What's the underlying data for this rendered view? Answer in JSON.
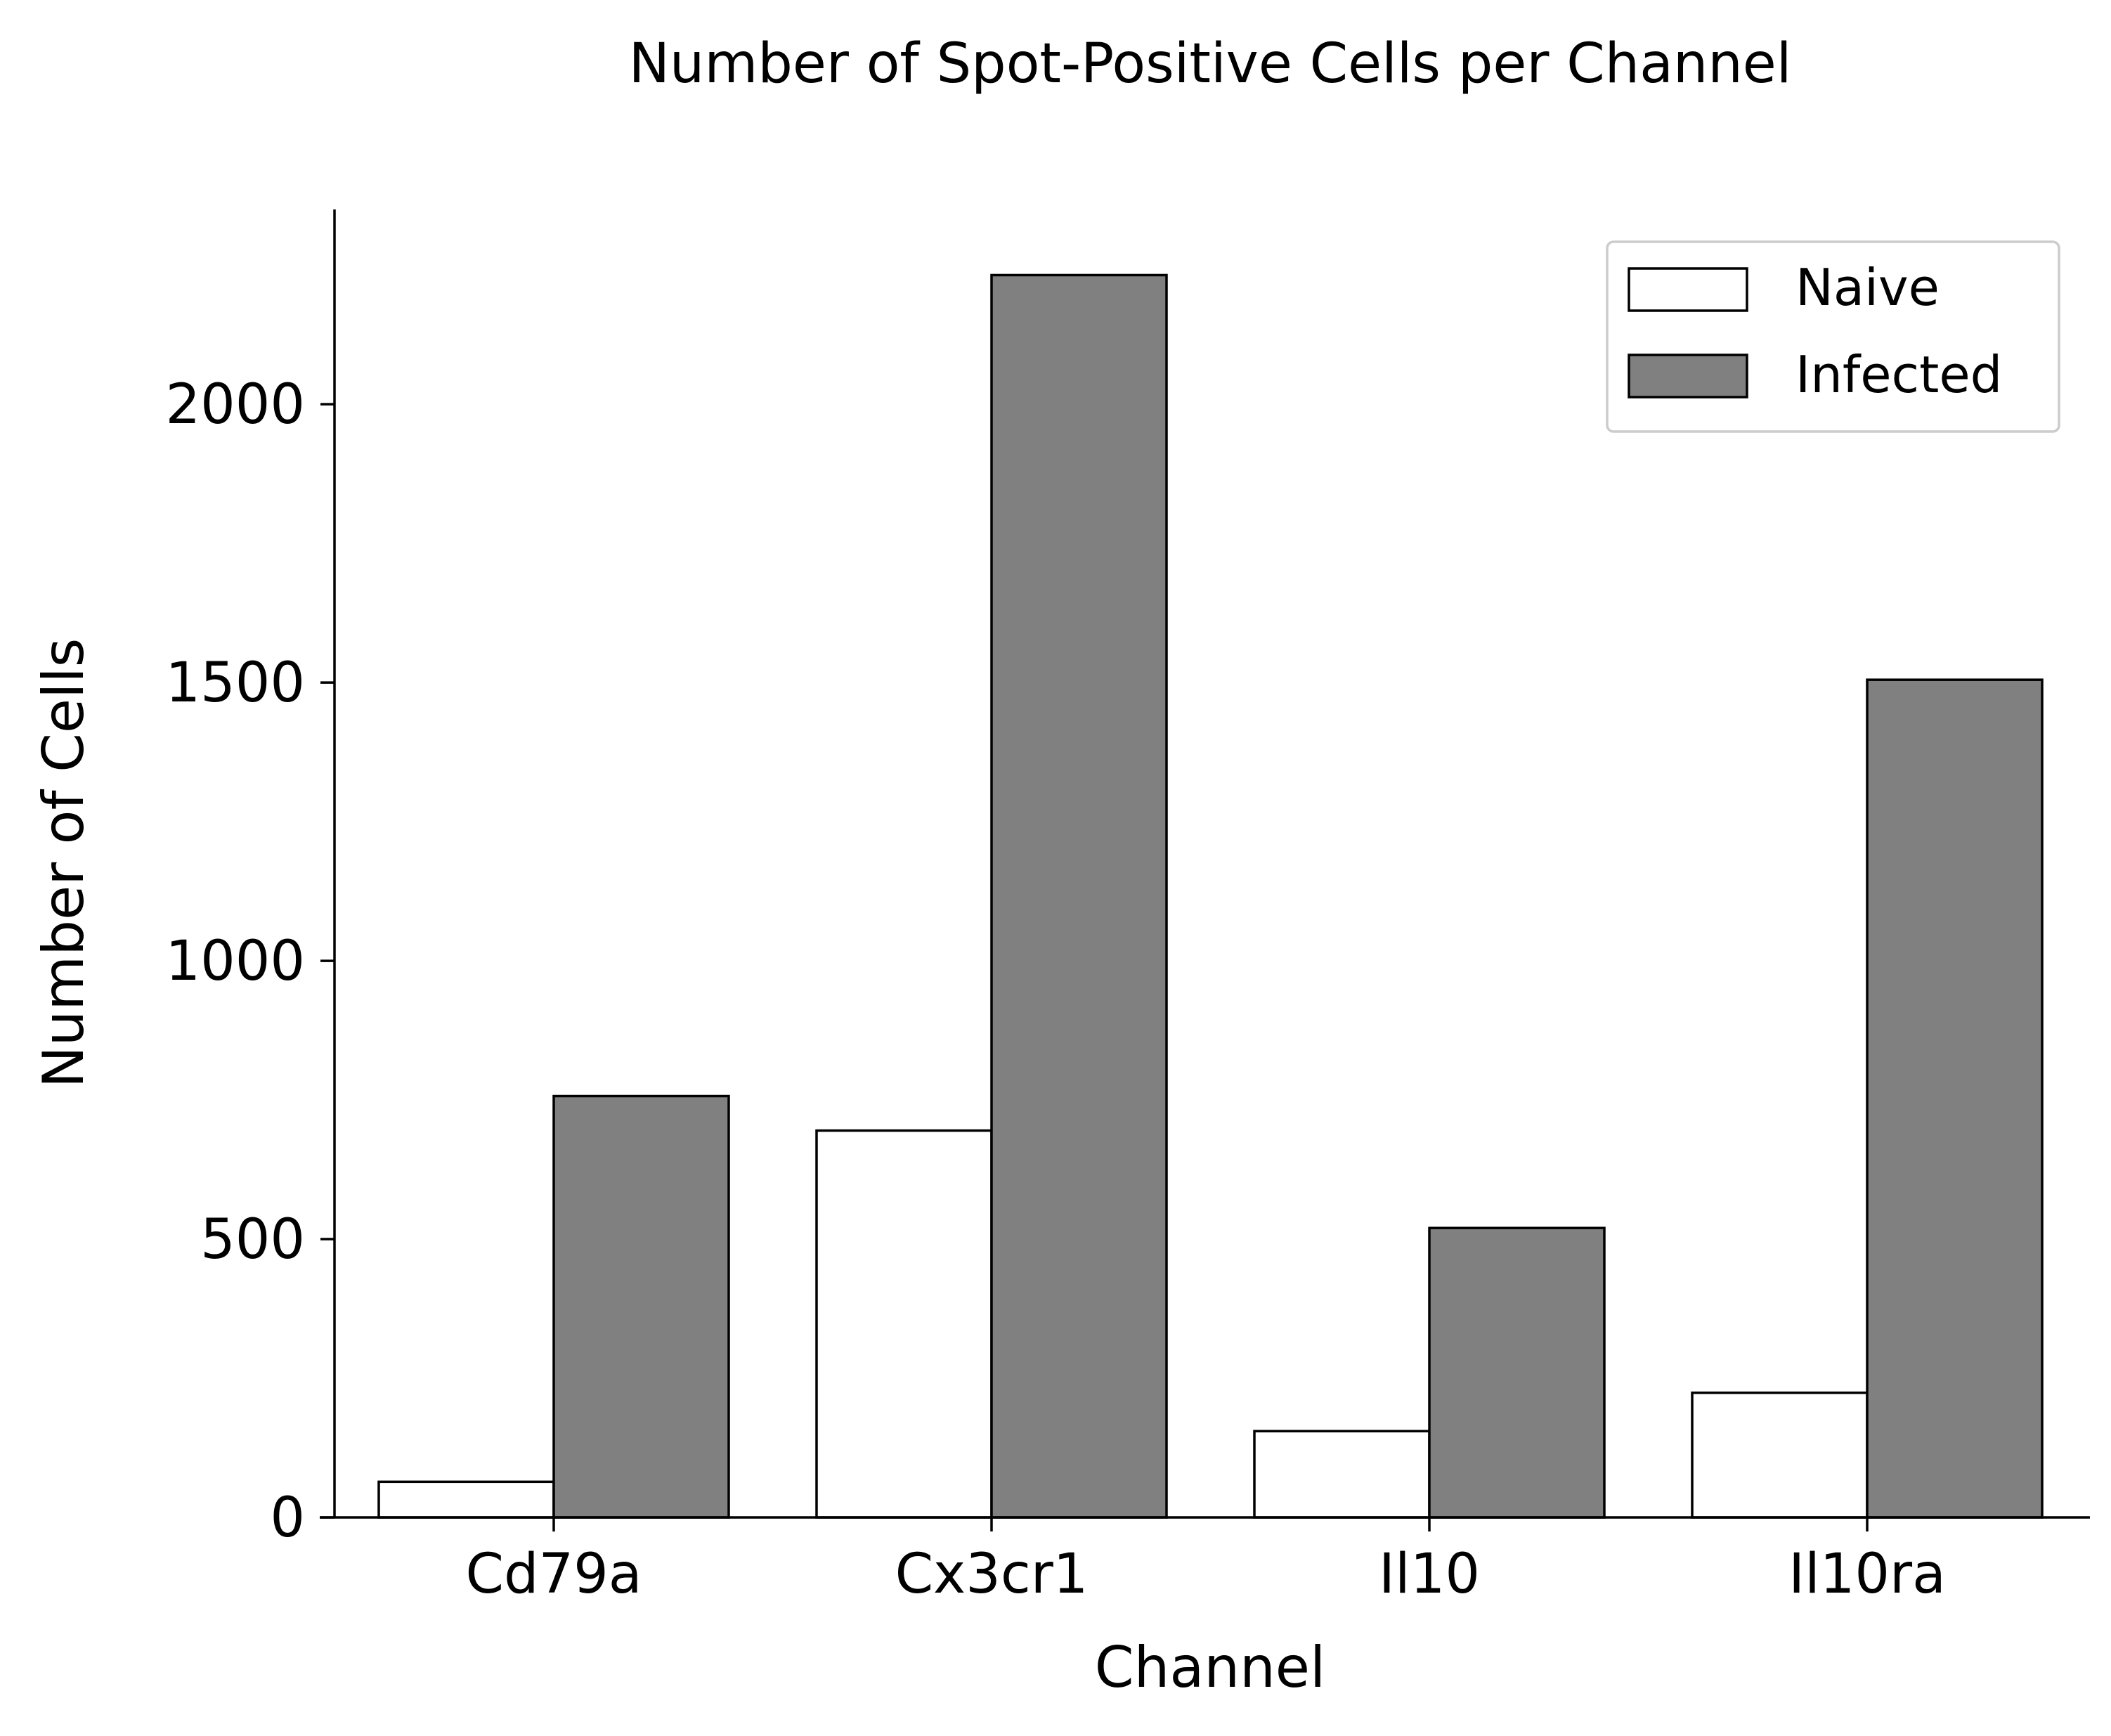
{
  "chart_data": {
    "type": "bar",
    "title": "Number of Spot-Positive Cells per Channel",
    "xlabel": "Channel",
    "ylabel": "Number of Cells",
    "categories": [
      "Cd79a",
      "Cx3cr1",
      "Il10",
      "Il10ra"
    ],
    "series": [
      {
        "name": "Naive",
        "values": [
          64,
          695,
          155,
          224
        ],
        "color": "#ffffff"
      },
      {
        "name": "Infected",
        "values": [
          757,
          2232,
          520,
          1505
        ],
        "color": "#808080"
      }
    ],
    "ylim": [
      0,
      2350
    ],
    "yticks": [
      0,
      500,
      1000,
      1500,
      2000
    ],
    "grid": false,
    "legend_position": "top-right",
    "edge_color": "#000000"
  }
}
